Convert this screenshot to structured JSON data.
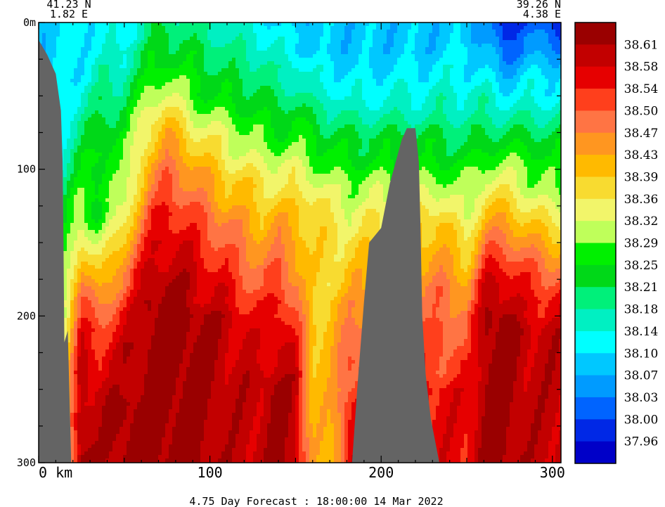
{
  "chart_data": {
    "type": "heatmap",
    "subtitle": "4.75 Day Forecast : 18:00:00  14 Mar 2022",
    "start_point": {
      "lat": "41.23 N",
      "lon": "1.82 E"
    },
    "end_point": {
      "lat": "39.26 N",
      "lon": "4.38 E"
    },
    "xlabel": "km",
    "ylabel": "m",
    "xlim": [
      0,
      305
    ],
    "ylim": [
      300,
      0
    ],
    "x_ticks": [
      {
        "value": 0,
        "label": "0  km"
      },
      {
        "value": 100,
        "label": "100"
      },
      {
        "value": 200,
        "label": "200"
      },
      {
        "value": 300,
        "label": "300"
      }
    ],
    "y_ticks": [
      {
        "value": 0,
        "label": "0m"
      },
      {
        "value": 100,
        "label": "100"
      },
      {
        "value": 200,
        "label": "200"
      },
      {
        "value": 300,
        "label": "300"
      }
    ],
    "colorbar_levels": [
      "38.61",
      "38.58",
      "38.54",
      "38.50",
      "38.47",
      "38.43",
      "38.39",
      "38.36",
      "38.32",
      "38.29",
      "38.25",
      "38.21",
      "38.18",
      "38.14",
      "38.10",
      "38.07",
      "38.03",
      "38.00",
      "37.96"
    ],
    "colorbar_colors": [
      "#9a0000",
      "#c20000",
      "#e60000",
      "#ff3f1c",
      "#ff7444",
      "#ff9620",
      "#ffba00",
      "#f8db30",
      "#f2f56a",
      "#bfff5a",
      "#00f000",
      "#00d818",
      "#00f07a",
      "#00f0c2",
      "#00ffff",
      "#00c8ff",
      "#009bff",
      "#0064ff",
      "#0028e6",
      "#0000c8"
    ],
    "terrain_color": "#646464",
    "bathymetry_km_depth": [
      [
        0,
        12
      ],
      [
        5,
        22
      ],
      [
        10,
        35
      ],
      [
        13,
        60
      ],
      [
        14,
        95
      ],
      [
        14.5,
        150
      ],
      [
        15,
        218
      ],
      [
        17,
        210
      ],
      [
        19,
        300
      ],
      [
        183,
        300
      ],
      [
        186,
        250
      ],
      [
        190,
        190
      ],
      [
        193,
        150
      ],
      [
        200,
        140
      ],
      [
        205,
        110
      ],
      [
        212,
        80
      ],
      [
        215,
        72
      ],
      [
        220,
        72
      ],
      [
        222,
        95
      ],
      [
        223,
        140
      ],
      [
        224,
        200
      ],
      [
        226,
        240
      ],
      [
        229,
        270
      ],
      [
        234,
        300
      ]
    ],
    "salinity_sections": [
      {
        "x": 2,
        "levels": [
          15,
          15,
          15,
          15,
          15,
          15,
          15,
          15,
          15,
          15,
          15,
          15,
          15,
          15,
          15,
          15,
          15,
          15,
          15,
          15,
          15,
          15,
          15,
          15,
          15,
          15,
          15,
          15,
          15,
          15,
          15
        ]
      },
      {
        "x": 25,
        "levels": [
          14,
          14,
          14,
          14,
          14,
          13,
          13,
          12,
          12,
          11,
          11,
          10,
          9,
          9,
          8,
          7,
          6,
          5,
          4,
          3,
          3,
          2,
          2,
          1,
          1,
          1,
          1,
          0,
          0,
          0,
          0
        ]
      },
      {
        "x": 35,
        "levels": [
          14,
          14,
          14,
          13,
          13,
          12,
          12,
          11,
          11,
          10,
          10,
          10,
          10,
          11,
          10,
          9,
          8,
          7,
          6,
          5,
          4,
          3,
          3,
          2,
          2,
          1,
          1,
          1,
          1,
          1,
          1
        ]
      },
      {
        "x": 50,
        "levels": [
          14,
          14,
          13,
          13,
          12,
          12,
          11,
          11,
          10,
          10,
          10,
          9,
          9,
          8,
          7,
          6,
          5,
          4,
          4,
          3,
          2,
          2,
          1,
          1,
          1,
          1,
          0,
          0,
          0,
          0,
          0
        ]
      },
      {
        "x": 65,
        "levels": [
          12,
          12,
          11,
          11,
          10,
          9,
          8,
          7,
          7,
          6,
          5,
          5,
          4,
          3,
          3,
          2,
          2,
          1,
          1,
          0,
          0,
          0,
          0,
          0,
          0,
          0,
          0,
          0,
          0,
          0,
          0
        ]
      },
      {
        "x": 75,
        "levels": [
          12,
          11,
          11,
          10,
          9,
          8,
          7,
          6,
          5,
          5,
          4,
          3,
          3,
          2,
          2,
          1,
          1,
          1,
          0,
          0,
          0,
          0,
          0,
          0,
          0,
          0,
          0,
          0,
          0,
          0,
          0
        ]
      },
      {
        "x": 90,
        "levels": [
          12,
          12,
          11,
          11,
          10,
          10,
          9,
          8,
          7,
          6,
          5,
          5,
          4,
          3,
          3,
          2,
          2,
          1,
          1,
          1,
          0,
          0,
          0,
          0,
          0,
          0,
          0,
          0,
          0,
          0,
          0
        ]
      },
      {
        "x": 110,
        "levels": [
          13,
          13,
          12,
          12,
          11,
          11,
          10,
          9,
          8,
          8,
          7,
          6,
          6,
          5,
          4,
          4,
          3,
          3,
          2,
          2,
          1,
          1,
          1,
          1,
          1,
          1,
          1,
          1,
          1,
          1,
          1
        ]
      },
      {
        "x": 130,
        "levels": [
          14,
          13,
          13,
          12,
          12,
          11,
          11,
          10,
          10,
          9,
          8,
          7,
          7,
          6,
          6,
          5,
          5,
          4,
          4,
          3,
          3,
          2,
          2,
          2,
          1,
          1,
          1,
          1,
          1,
          1,
          1
        ]
      },
      {
        "x": 140,
        "levels": [
          15,
          14,
          14,
          13,
          13,
          12,
          11,
          11,
          10,
          9,
          8,
          8,
          7,
          6,
          5,
          5,
          4,
          3,
          3,
          2,
          2,
          1,
          1,
          1,
          1,
          0,
          0,
          0,
          0,
          0,
          0
        ]
      },
      {
        "x": 150,
        "levels": [
          15,
          14,
          14,
          13,
          12,
          12,
          11,
          10,
          10,
          9,
          8,
          8,
          7,
          6,
          6,
          5,
          5,
          5,
          4,
          4,
          3,
          3,
          2,
          2,
          1,
          1,
          1,
          1,
          1,
          1,
          1
        ]
      },
      {
        "x": 160,
        "levels": [
          15,
          15,
          15,
          14,
          14,
          13,
          12,
          11,
          10,
          10,
          9,
          8,
          7,
          7,
          7,
          7,
          7,
          7,
          7,
          7,
          7,
          6,
          6,
          6,
          6,
          6,
          6,
          6,
          6,
          6,
          6
        ]
      },
      {
        "x": 170,
        "levels": [
          15,
          15,
          15,
          14,
          14,
          13,
          12,
          12,
          11,
          10,
          10,
          9,
          8,
          8,
          7,
          7,
          7,
          7,
          7,
          6,
          6,
          6,
          6,
          6,
          6,
          6,
          6,
          6,
          6,
          6,
          6
        ]
      },
      {
        "x": 182,
        "levels": [
          15,
          15,
          15,
          15,
          14,
          14,
          13,
          12,
          11,
          11,
          10,
          9,
          9,
          8,
          8,
          7,
          7,
          6,
          6,
          5,
          5,
          4,
          4,
          3,
          3,
          3,
          2,
          2,
          2,
          2,
          2
        ]
      },
      {
        "x": 235,
        "levels": [
          15,
          15,
          15,
          14,
          14,
          13,
          13,
          12,
          11,
          11,
          10,
          9,
          8,
          7,
          6,
          6,
          5,
          5,
          4,
          4,
          4,
          3,
          3,
          3,
          3,
          2,
          2,
          2,
          2,
          2,
          2
        ]
      },
      {
        "x": 250,
        "levels": [
          15,
          15,
          14,
          14,
          14,
          13,
          13,
          12,
          12,
          11,
          10,
          10,
          9,
          9,
          8,
          7,
          7,
          6,
          5,
          5,
          4,
          4,
          4,
          3,
          3,
          2,
          2,
          2,
          2,
          2,
          2
        ]
      },
      {
        "x": 262,
        "levels": [
          16,
          16,
          15,
          15,
          14,
          13,
          13,
          12,
          11,
          10,
          9,
          8,
          7,
          6,
          5,
          4,
          3,
          2,
          1,
          1,
          0,
          0,
          0,
          0,
          0,
          0,
          0,
          0,
          0,
          0,
          0
        ]
      },
      {
        "x": 272,
        "levels": [
          19,
          18,
          17,
          16,
          15,
          14,
          13,
          12,
          11,
          10,
          9,
          8,
          7,
          6,
          5,
          4,
          3,
          2,
          1,
          1,
          0,
          0,
          0,
          0,
          0,
          0,
          0,
          0,
          0,
          0,
          0
        ]
      },
      {
        "x": 285,
        "levels": [
          17,
          16,
          16,
          15,
          14,
          14,
          13,
          12,
          11,
          10,
          9,
          9,
          8,
          7,
          6,
          5,
          4,
          3,
          3,
          2,
          2,
          1,
          1,
          1,
          1,
          1,
          1,
          1,
          1,
          1,
          1
        ]
      },
      {
        "x": 300,
        "levels": [
          18,
          17,
          16,
          15,
          14,
          14,
          13,
          12,
          11,
          11,
          10,
          10,
          9,
          8,
          7,
          6,
          5,
          4,
          3,
          2,
          2,
          1,
          1,
          1,
          1,
          1,
          1,
          1,
          1,
          1,
          1
        ]
      },
      {
        "x": 305,
        "levels": [
          18,
          17,
          16,
          15,
          14,
          14,
          13,
          12,
          11,
          11,
          10,
          10,
          9,
          8,
          7,
          6,
          5,
          4,
          3,
          2,
          2,
          1,
          1,
          1,
          1,
          1,
          1,
          1,
          1,
          1,
          1
        ]
      }
    ]
  }
}
